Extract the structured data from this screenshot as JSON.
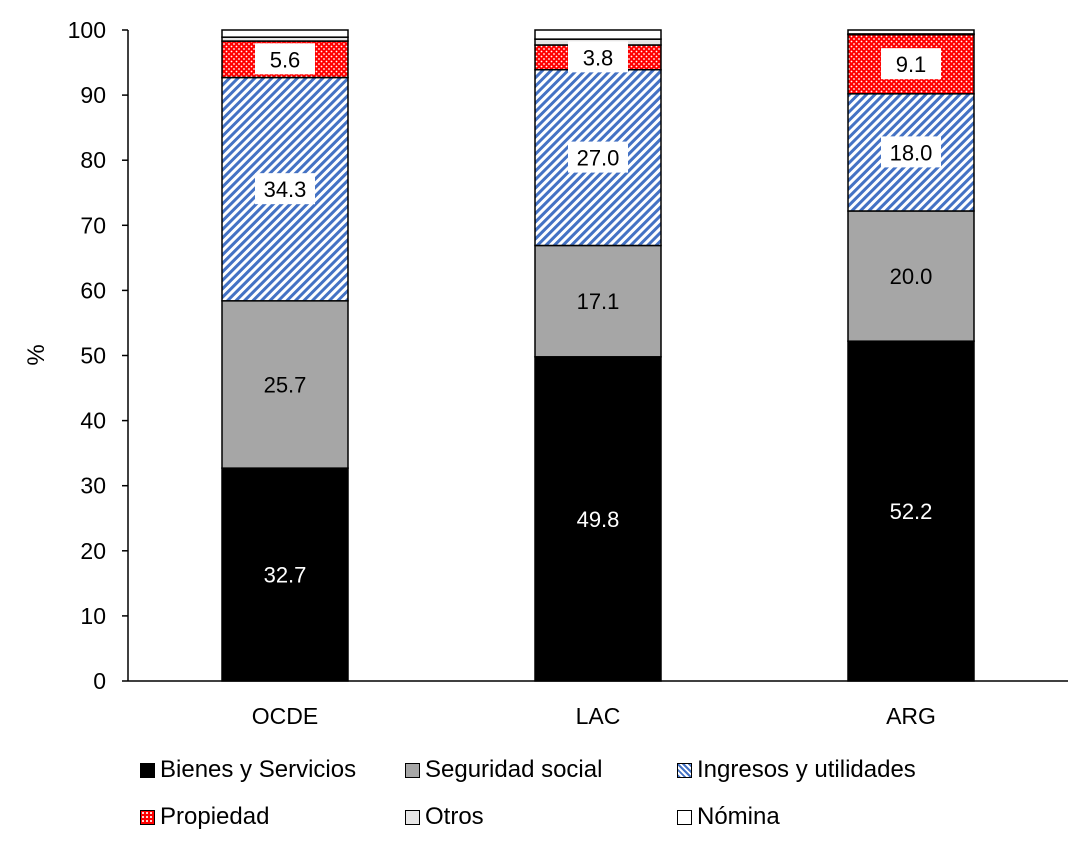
{
  "chart_data": {
    "type": "bar",
    "stacked": true,
    "categories": [
      "OCDE",
      "LAC",
      "ARG"
    ],
    "ylabel": "%",
    "ylim": [
      0,
      100
    ],
    "yticks": [
      0,
      10,
      20,
      30,
      40,
      50,
      60,
      70,
      80,
      90,
      100
    ],
    "grid": false,
    "legend_position": "bottom",
    "series": [
      {
        "name": "Bienes y Servicios",
        "values": [
          32.7,
          49.8,
          52.2
        ],
        "labels": [
          "32.7",
          "49.8",
          "52.2"
        ],
        "pattern": "solid-black",
        "color": "#000000"
      },
      {
        "name": "Seguridad social",
        "values": [
          25.7,
          17.1,
          20.0
        ],
        "labels": [
          "25.7",
          "17.1",
          "20.0"
        ],
        "pattern": "solid-gray",
        "color": "#a6a6a6"
      },
      {
        "name": "Ingresos y utilidades",
        "values": [
          34.3,
          27.0,
          18.0
        ],
        "labels": [
          "34.3",
          "27.0",
          "18.0"
        ],
        "pattern": "blue-diagonal-hatch",
        "color": "#4472c4"
      },
      {
        "name": "Propiedad",
        "values": [
          5.6,
          3.8,
          9.1
        ],
        "labels": [
          "5.6",
          "3.8",
          "9.1"
        ],
        "pattern": "red-dots",
        "color": "#ff0000"
      },
      {
        "name": "Otros",
        "values": [
          0.6,
          0.9,
          0.1
        ],
        "labels": [
          "",
          "",
          ""
        ],
        "pattern": "light-gray",
        "color": "#e7e6e6"
      },
      {
        "name": "Nómina",
        "values": [
          1.1,
          1.4,
          0.6
        ],
        "labels": [
          "",
          "",
          ""
        ],
        "pattern": "white",
        "color": "#ffffff"
      }
    ]
  }
}
